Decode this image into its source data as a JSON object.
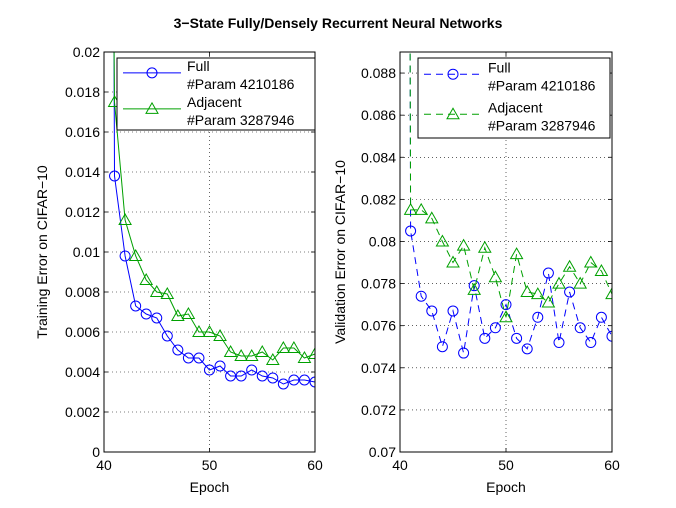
{
  "figure_title": "3−State Fully/Densely Recurrent Neural Networks",
  "chart_data": [
    {
      "type": "line",
      "title": "",
      "xlabel": "Epoch",
      "ylabel": "Training Error on CIFAR−10",
      "xlim": [
        40,
        60
      ],
      "ylim": [
        0,
        0.02
      ],
      "xticks": [
        "40",
        "50",
        "60"
      ],
      "yticks": [
        "0",
        "0.002",
        "0.004",
        "0.006",
        "0.008",
        "0.01",
        "0.012",
        "0.014",
        "0.016",
        "0.018",
        "0.02"
      ],
      "grid": true,
      "legend_position": "top-right",
      "x": [
        41,
        42,
        43,
        44,
        45,
        46,
        47,
        48,
        49,
        50,
        51,
        52,
        53,
        54,
        55,
        56,
        57,
        58,
        59,
        60
      ],
      "series": [
        {
          "name": "Full",
          "name_line2": "#Param 4210186",
          "color": "#0000ff",
          "marker": "circle",
          "dash": "solid",
          "y0": 0.0205,
          "values": [
            0.0138,
            0.0098,
            0.0073,
            0.0069,
            0.0067,
            0.0058,
            0.0051,
            0.0047,
            0.0047,
            0.0041,
            0.0043,
            0.0038,
            0.0038,
            0.0041,
            0.0038,
            0.0037,
            0.0034,
            0.0036,
            0.0036,
            0.0035
          ]
        },
        {
          "name": "Adjacent",
          "name_line2": "#Param 3287946",
          "color": "#00a000",
          "marker": "triangle",
          "dash": "solid",
          "y0": 0.0205,
          "values": [
            0.0175,
            0.0116,
            0.0098,
            0.0086,
            0.008,
            0.0079,
            0.0068,
            0.0069,
            0.006,
            0.006,
            0.0058,
            0.005,
            0.0048,
            0.0048,
            0.005,
            0.0046,
            0.0052,
            0.0052,
            0.0047,
            0.0049
          ]
        }
      ]
    },
    {
      "type": "line",
      "title": "",
      "xlabel": "Epoch",
      "ylabel": "Validation Error on CIFAR−10",
      "xlim": [
        40,
        60
      ],
      "ylim": [
        0.07,
        0.089
      ],
      "xticks": [
        "40",
        "50",
        "60"
      ],
      "yticks": [
        "0.07",
        "0.072",
        "0.074",
        "0.076",
        "0.078",
        "0.08",
        "0.082",
        "0.084",
        "0.086",
        "0.088"
      ],
      "grid": true,
      "legend_position": "top-right",
      "x": [
        41,
        42,
        43,
        44,
        45,
        46,
        47,
        48,
        49,
        50,
        51,
        52,
        53,
        54,
        55,
        56,
        57,
        58,
        59,
        60
      ],
      "series": [
        {
          "name": "Full",
          "name_line2": "#Param 4210186",
          "color": "#0000ff",
          "marker": "circle",
          "dash": "dashed",
          "y0": 0.0895,
          "values": [
            0.0805,
            0.0774,
            0.0767,
            0.075,
            0.0767,
            0.0747,
            0.0779,
            0.0754,
            0.0759,
            0.077,
            0.0754,
            0.0749,
            0.0764,
            0.0785,
            0.0752,
            0.0776,
            0.0759,
            0.0752,
            0.0764,
            0.0755
          ]
        },
        {
          "name": "Adjacent",
          "name_line2": "#Param 3287946",
          "color": "#00a000",
          "marker": "triangle",
          "dash": "dashed",
          "y0": 0.0895,
          "values": [
            0.0815,
            0.0815,
            0.0811,
            0.08,
            0.079,
            0.0798,
            0.0777,
            0.0797,
            0.0783,
            0.0764,
            0.0794,
            0.0776,
            0.0775,
            0.0771,
            0.078,
            0.0788,
            0.078,
            0.079,
            0.0786,
            0.0775
          ]
        }
      ]
    }
  ]
}
